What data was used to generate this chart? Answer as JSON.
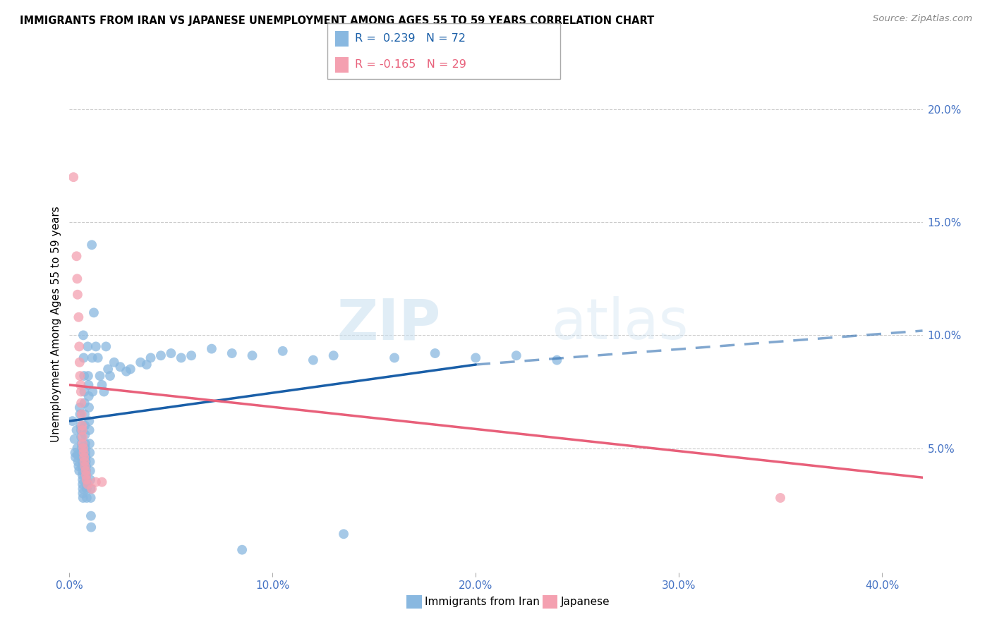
{
  "title": "IMMIGRANTS FROM IRAN VS JAPANESE UNEMPLOYMENT AMONG AGES 55 TO 59 YEARS CORRELATION CHART",
  "source": "Source: ZipAtlas.com",
  "xlabel_ticks": [
    "0.0%",
    "10.0%",
    "20.0%",
    "30.0%",
    "40.0%"
  ],
  "xlabel_tick_vals": [
    0.0,
    10.0,
    20.0,
    30.0,
    40.0
  ],
  "ylabel_ticks": [
    "5.0%",
    "10.0%",
    "15.0%",
    "20.0%"
  ],
  "ylabel_tick_vals": [
    5.0,
    10.0,
    15.0,
    20.0
  ],
  "xmin": 0.0,
  "xmax": 42.0,
  "ymin": -0.5,
  "ymax": 21.5,
  "watermark_zip": "ZIP",
  "watermark_atlas": "atlas",
  "blue_color": "#89b8e0",
  "pink_color": "#f4a0b0",
  "blue_line_color": "#1a5fa8",
  "pink_line_color": "#e8607a",
  "blue_scatter": [
    [
      0.15,
      6.2
    ],
    [
      0.25,
      5.4
    ],
    [
      0.28,
      4.8
    ],
    [
      0.3,
      4.6
    ],
    [
      0.35,
      5.8
    ],
    [
      0.38,
      5.0
    ],
    [
      0.4,
      4.7
    ],
    [
      0.42,
      4.4
    ],
    [
      0.45,
      4.2
    ],
    [
      0.48,
      4.0
    ],
    [
      0.5,
      6.8
    ],
    [
      0.52,
      6.5
    ],
    [
      0.55,
      6.0
    ],
    [
      0.57,
      5.8
    ],
    [
      0.58,
      5.5
    ],
    [
      0.6,
      5.2
    ],
    [
      0.6,
      5.0
    ],
    [
      0.62,
      4.8
    ],
    [
      0.62,
      4.6
    ],
    [
      0.63,
      4.4
    ],
    [
      0.63,
      4.2
    ],
    [
      0.64,
      4.0
    ],
    [
      0.64,
      3.8
    ],
    [
      0.65,
      3.6
    ],
    [
      0.65,
      3.4
    ],
    [
      0.66,
      3.2
    ],
    [
      0.66,
      3.0
    ],
    [
      0.67,
      2.8
    ],
    [
      0.68,
      10.0
    ],
    [
      0.7,
      9.0
    ],
    [
      0.72,
      8.2
    ],
    [
      0.73,
      7.5
    ],
    [
      0.74,
      7.0
    ],
    [
      0.75,
      6.5
    ],
    [
      0.76,
      6.0
    ],
    [
      0.77,
      5.6
    ],
    [
      0.78,
      5.2
    ],
    [
      0.78,
      5.0
    ],
    [
      0.79,
      4.8
    ],
    [
      0.8,
      4.6
    ],
    [
      0.81,
      4.4
    ],
    [
      0.82,
      4.2
    ],
    [
      0.82,
      4.0
    ],
    [
      0.83,
      3.8
    ],
    [
      0.84,
      3.6
    ],
    [
      0.84,
      3.4
    ],
    [
      0.85,
      3.2
    ],
    [
      0.85,
      2.8
    ],
    [
      0.9,
      9.5
    ],
    [
      0.92,
      8.2
    ],
    [
      0.94,
      7.8
    ],
    [
      0.95,
      7.3
    ],
    [
      0.96,
      6.8
    ],
    [
      0.97,
      6.2
    ],
    [
      0.98,
      5.8
    ],
    [
      0.99,
      5.2
    ],
    [
      1.0,
      4.8
    ],
    [
      1.01,
      4.4
    ],
    [
      1.02,
      4.0
    ],
    [
      1.03,
      3.6
    ],
    [
      1.04,
      3.2
    ],
    [
      1.05,
      2.8
    ],
    [
      1.06,
      2.0
    ],
    [
      1.07,
      1.5
    ],
    [
      1.1,
      14.0
    ],
    [
      1.12,
      9.0
    ],
    [
      1.14,
      7.5
    ],
    [
      1.2,
      11.0
    ],
    [
      1.3,
      9.5
    ],
    [
      1.4,
      9.0
    ],
    [
      1.5,
      8.2
    ],
    [
      1.6,
      7.8
    ],
    [
      1.7,
      7.5
    ],
    [
      1.8,
      9.5
    ],
    [
      1.9,
      8.5
    ],
    [
      2.0,
      8.2
    ],
    [
      2.2,
      8.8
    ],
    [
      2.5,
      8.6
    ],
    [
      2.8,
      8.4
    ],
    [
      3.0,
      8.5
    ],
    [
      3.5,
      8.8
    ],
    [
      3.8,
      8.7
    ],
    [
      4.0,
      9.0
    ],
    [
      4.5,
      9.1
    ],
    [
      5.0,
      9.2
    ],
    [
      5.5,
      9.0
    ],
    [
      6.0,
      9.1
    ],
    [
      7.0,
      9.4
    ],
    [
      8.0,
      9.2
    ],
    [
      9.0,
      9.1
    ],
    [
      10.5,
      9.3
    ],
    [
      12.0,
      8.9
    ],
    [
      13.0,
      9.1
    ],
    [
      16.0,
      9.0
    ],
    [
      18.0,
      9.2
    ],
    [
      20.0,
      9.0
    ],
    [
      22.0,
      9.1
    ],
    [
      24.0,
      8.9
    ],
    [
      13.5,
      1.2
    ],
    [
      8.5,
      0.5
    ]
  ],
  "pink_scatter": [
    [
      0.2,
      17.0
    ],
    [
      0.35,
      13.5
    ],
    [
      0.38,
      12.5
    ],
    [
      0.4,
      11.8
    ],
    [
      0.45,
      10.8
    ],
    [
      0.48,
      9.5
    ],
    [
      0.5,
      8.8
    ],
    [
      0.52,
      8.2
    ],
    [
      0.55,
      7.8
    ],
    [
      0.57,
      7.5
    ],
    [
      0.58,
      7.0
    ],
    [
      0.6,
      6.5
    ],
    [
      0.62,
      6.0
    ],
    [
      0.63,
      5.8
    ],
    [
      0.64,
      5.5
    ],
    [
      0.65,
      5.2
    ],
    [
      0.68,
      5.0
    ],
    [
      0.7,
      4.8
    ],
    [
      0.72,
      4.6
    ],
    [
      0.74,
      4.4
    ],
    [
      0.76,
      4.2
    ],
    [
      0.8,
      4.0
    ],
    [
      0.82,
      3.8
    ],
    [
      0.84,
      3.6
    ],
    [
      0.9,
      3.4
    ],
    [
      1.1,
      3.2
    ],
    [
      1.3,
      3.5
    ],
    [
      1.6,
      3.5
    ],
    [
      35.0,
      2.8
    ]
  ],
  "blue_trendline_solid": [
    0.0,
    20.0,
    6.2,
    8.7
  ],
  "blue_trendline_dashed": [
    20.0,
    42.0,
    8.7,
    10.2
  ],
  "pink_trendline": [
    0.0,
    42.0,
    7.8,
    3.7
  ]
}
